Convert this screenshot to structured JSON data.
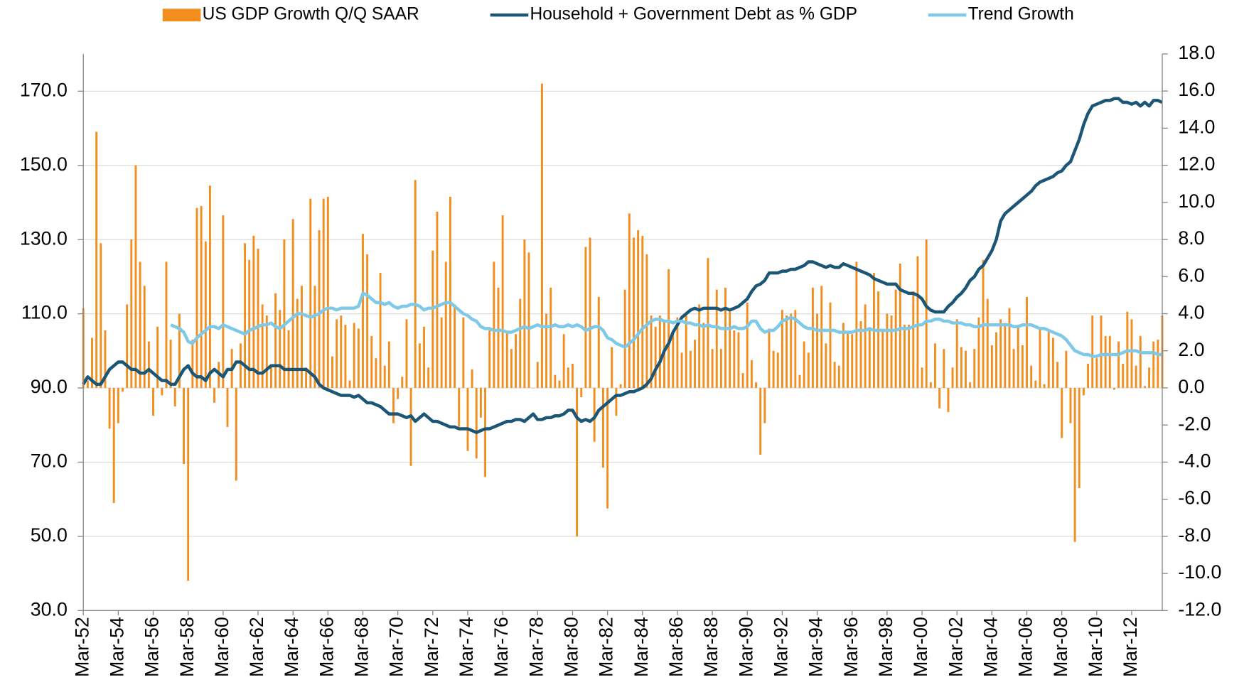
{
  "chart_data": {
    "type": "bar",
    "categories": [
      "Mar-52",
      null,
      null,
      null,
      null,
      null,
      null,
      null,
      "Mar-54",
      null,
      null,
      null,
      null,
      null,
      null,
      null,
      "Mar-56",
      null,
      null,
      null,
      null,
      null,
      null,
      null,
      "Mar-58",
      null,
      null,
      null,
      null,
      null,
      null,
      null,
      "Mar-60",
      null,
      null,
      null,
      null,
      null,
      null,
      null,
      "Mar-62",
      null,
      null,
      null,
      null,
      null,
      null,
      null,
      "Mar-64",
      null,
      null,
      null,
      null,
      null,
      null,
      null,
      "Mar-66",
      null,
      null,
      null,
      null,
      null,
      null,
      null,
      "Mar-68",
      null,
      null,
      null,
      null,
      null,
      null,
      null,
      "Mar-70",
      null,
      null,
      null,
      null,
      null,
      null,
      null,
      "Mar-72",
      null,
      null,
      null,
      null,
      null,
      null,
      null,
      "Mar-74",
      null,
      null,
      null,
      null,
      null,
      null,
      null,
      "Mar-76",
      null,
      null,
      null,
      null,
      null,
      null,
      null,
      "Mar-78",
      null,
      null,
      null,
      null,
      null,
      null,
      null,
      "Mar-80",
      null,
      null,
      null,
      null,
      null,
      null,
      null,
      "Mar-82",
      null,
      null,
      null,
      null,
      null,
      null,
      null,
      "Mar-84",
      null,
      null,
      null,
      null,
      null,
      null,
      null,
      "Mar-86",
      null,
      null,
      null,
      null,
      null,
      null,
      null,
      "Mar-88",
      null,
      null,
      null,
      null,
      null,
      null,
      null,
      "Mar-90",
      null,
      null,
      null,
      null,
      null,
      null,
      null,
      "Mar-92",
      null,
      null,
      null,
      null,
      null,
      null,
      null,
      "Mar-94",
      null,
      null,
      null,
      null,
      null,
      null,
      null,
      "Mar-96",
      null,
      null,
      null,
      null,
      null,
      null,
      null,
      "Mar-98",
      null,
      null,
      null,
      null,
      null,
      null,
      null,
      "Mar-00",
      null,
      null,
      null,
      null,
      null,
      null,
      null,
      "Mar-02",
      null,
      null,
      null,
      null,
      null,
      null,
      null,
      "Mar-04",
      null,
      null,
      null,
      null,
      null,
      null,
      null,
      "Mar-06",
      null,
      null,
      null,
      null,
      null,
      null,
      null,
      "Mar-08",
      null,
      null,
      null,
      null,
      null,
      null,
      null,
      "Mar-10",
      null,
      null,
      null,
      null,
      null,
      null,
      null,
      "Mar-12",
      null,
      null,
      null,
      null,
      null,
      null,
      null
    ],
    "series": [
      {
        "name": "US GDP Growth Q/Q SAAR",
        "type": "bar",
        "axis": "y2",
        "color": "#f28e1e",
        "values": [
          4.3,
          0.4,
          2.7,
          13.8,
          7.8,
          3.1,
          -2.2,
          -6.2,
          -1.9,
          -0.2,
          4.5,
          8.0,
          12.0,
          6.8,
          5.5,
          2.5,
          -1.5,
          3.3,
          -0.4,
          6.8,
          2.6,
          -1.0,
          4.0,
          -4.1,
          -10.4,
          2.6,
          9.7,
          9.8,
          7.9,
          10.9,
          -0.8,
          1.4,
          9.3,
          -2.1,
          2.1,
          -5.0,
          2.4,
          7.8,
          6.9,
          8.2,
          7.5,
          4.5,
          3.9,
          1.2,
          5.1,
          4.2,
          8.0,
          3.1,
          9.1,
          4.8,
          5.5,
          1.1,
          10.2,
          5.5,
          8.5,
          10.2,
          10.3,
          1.7,
          3.7,
          3.9,
          3.4,
          0.4,
          3.5,
          3.2,
          8.3,
          7.2,
          2.8,
          1.6,
          6.2,
          1.2,
          2.5,
          -1.9,
          -0.6,
          0.6,
          3.7,
          -4.2,
          11.2,
          2.4,
          3.3,
          1.1,
          7.4,
          9.5,
          3.8,
          6.8,
          10.3,
          4.5,
          -2.1,
          3.8,
          -3.4,
          1.0,
          -3.8,
          -1.6,
          -4.8,
          3.1,
          6.8,
          5.4,
          9.3,
          3.0,
          2.1,
          2.9,
          4.8,
          8.0,
          7.3,
          0.0,
          1.4,
          16.4,
          4.0,
          5.4,
          0.7,
          0.4,
          2.9,
          1.1,
          1.3,
          -8.0,
          -0.5,
          7.6,
          8.1,
          -2.9,
          4.9,
          -4.3,
          -6.5,
          2.2,
          -1.5,
          0.2,
          5.3,
          9.4,
          8.1,
          8.5,
          8.2,
          7.2,
          3.9,
          3.3,
          3.9,
          3.6,
          6.4,
          3.1,
          3.8,
          1.9,
          3.9,
          2.0,
          2.6,
          4.5,
          3.5,
          7.0,
          2.1,
          5.3,
          2.1,
          5.4,
          4.1,
          3.1,
          3.0,
          0.8,
          4.6,
          1.5,
          0.3,
          -3.6,
          -1.9,
          3.2,
          2.0,
          1.9,
          4.2,
          3.9,
          4.0,
          4.2,
          0.7,
          2.5,
          1.9,
          5.4,
          4.0,
          5.5,
          2.4,
          4.6,
          1.4,
          1.2,
          3.5,
          3.0,
          2.9,
          6.8,
          3.6,
          4.5,
          3.1,
          6.2,
          5.2,
          3.1,
          4.0,
          3.9,
          5.3,
          6.7,
          3.4,
          3.4,
          5.2,
          7.1,
          1.1,
          8.0,
          0.3,
          2.4,
          -1.1,
          2.1,
          -1.3,
          1.1,
          3.7,
          2.2,
          2.0,
          0.3,
          2.1,
          3.8,
          6.9,
          4.8,
          2.3,
          3.0,
          3.7,
          3.5,
          4.3,
          2.1,
          3.4,
          2.3,
          4.9,
          1.2,
          0.4,
          3.2,
          0.2,
          3.1,
          2.7,
          1.4,
          -2.7,
          2.0,
          -1.9,
          -8.3,
          -5.4,
          -0.4,
          1.3,
          3.9,
          1.6,
          3.9,
          2.8,
          2.8,
          -0.1,
          2.5,
          1.3,
          4.1,
          3.7,
          1.2,
          2.8,
          0.1,
          1.1,
          2.5,
          2.6,
          3.9
        ]
      },
      {
        "name": "Household + Government Debt as % GDP",
        "type": "line",
        "axis": "y",
        "color": "#1b5676",
        "values": [
          91,
          93,
          92,
          91,
          91,
          93,
          95,
          96,
          97,
          97,
          96,
          95,
          95,
          94,
          94,
          95,
          94,
          93,
          92,
          92,
          91,
          91,
          93,
          95,
          96,
          94,
          93,
          93,
          92,
          94,
          95,
          94,
          93,
          95,
          95,
          97,
          97,
          96,
          95,
          95,
          94,
          94,
          95,
          96,
          96,
          96,
          95,
          95,
          95,
          95,
          95,
          95,
          94,
          93,
          91,
          90,
          89.5,
          89,
          88.5,
          88,
          88,
          88,
          87.5,
          88,
          87,
          86,
          86,
          85.5,
          85,
          84,
          83,
          83,
          83,
          82.5,
          82,
          82.5,
          81,
          82,
          83,
          82,
          81,
          81,
          80.5,
          80,
          79.5,
          79.5,
          79,
          79,
          79,
          78.5,
          78,
          78.5,
          79,
          79,
          79.5,
          80,
          80.5,
          81,
          81,
          81.5,
          81.5,
          81,
          82,
          83,
          81.5,
          81.5,
          82,
          82,
          82.5,
          82.5,
          83,
          84,
          84,
          82,
          81,
          81.5,
          81,
          82,
          84,
          85,
          86,
          87,
          88,
          88,
          88.5,
          89,
          89,
          89.5,
          90,
          91,
          92.5,
          95,
          97,
          100,
          102,
          105,
          107,
          109,
          110,
          111,
          111.5,
          111,
          111.5,
          111.5,
          111.5,
          111.5,
          111,
          111.5,
          111,
          111.5,
          112,
          113,
          114,
          116,
          117.5,
          118,
          119,
          121,
          121,
          121,
          121.5,
          121.5,
          122,
          122,
          122.5,
          123,
          124,
          124,
          123.5,
          123,
          122.5,
          123,
          122.5,
          122.5,
          123.5,
          123,
          122.5,
          122,
          121.5,
          121,
          120.5,
          119.5,
          119,
          118.5,
          118,
          118,
          118,
          116.5,
          116,
          115.5,
          115.5,
          115,
          114,
          112,
          111,
          110.5,
          110.5,
          110.5,
          112,
          113,
          114.5,
          115.5,
          117,
          119,
          120,
          122,
          123,
          125,
          127,
          130,
          135,
          137,
          138,
          139,
          140,
          141,
          142,
          143,
          144.5,
          145.5,
          146,
          146.5,
          147,
          148,
          148.5,
          150,
          151,
          154,
          157,
          161,
          164,
          166,
          166.5,
          167,
          167.5,
          167.5,
          168,
          168,
          167,
          167,
          166.5,
          167,
          166,
          167,
          166,
          167.5,
          167.5,
          167
        ]
      },
      {
        "name": "Trend Growth",
        "type": "line",
        "axis": "y2",
        "color": "#7ec8e8",
        "values": [
          null,
          null,
          null,
          null,
          null,
          null,
          null,
          null,
          null,
          null,
          null,
          null,
          null,
          null,
          null,
          null,
          null,
          null,
          null,
          null,
          3.4,
          3.3,
          3.2,
          3.0,
          2.5,
          2.4,
          2.7,
          2.9,
          3.1,
          3.3,
          3.3,
          3.2,
          3.4,
          3.3,
          3.2,
          3.1,
          3.0,
          2.9,
          3.1,
          3.2,
          3.3,
          3.4,
          3.4,
          3.5,
          3.3,
          3.2,
          3.4,
          3.6,
          3.8,
          4.0,
          4.0,
          3.9,
          3.8,
          3.9,
          4.0,
          4.2,
          4.3,
          4.3,
          4.2,
          4.3,
          4.3,
          4.3,
          4.3,
          4.4,
          5.1,
          5.0,
          4.8,
          4.6,
          4.6,
          4.5,
          4.6,
          4.4,
          4.3,
          4.4,
          4.4,
          4.5,
          4.5,
          4.4,
          4.2,
          4.3,
          4.3,
          4.4,
          4.5,
          4.6,
          4.6,
          4.4,
          4.2,
          4.0,
          3.9,
          3.7,
          3.6,
          3.3,
          3.2,
          3.2,
          3.1,
          3.1,
          3.1,
          3.0,
          3.0,
          3.1,
          3.2,
          3.3,
          3.2,
          3.3,
          3.4,
          3.3,
          3.3,
          3.3,
          3.4,
          3.3,
          3.3,
          3.4,
          3.3,
          3.4,
          3.3,
          3.1,
          3.2,
          3.3,
          3.3,
          3.1,
          2.7,
          2.6,
          2.4,
          2.3,
          2.2,
          2.4,
          2.6,
          2.9,
          3.2,
          3.4,
          3.6,
          3.7,
          3.7,
          3.6,
          3.6,
          3.5,
          3.6,
          3.6,
          3.5,
          3.5,
          3.4,
          3.4,
          3.3,
          3.4,
          3.3,
          3.3,
          3.2,
          3.2,
          3.2,
          3.3,
          3.2,
          3.2,
          3.3,
          3.6,
          3.6,
          3.2,
          3.0,
          3.1,
          3.1,
          3.3,
          3.6,
          3.7,
          3.8,
          3.7,
          3.5,
          3.3,
          3.2,
          3.2,
          3.1,
          3.1,
          3.1,
          3.1,
          3.1,
          3.0,
          3.0,
          3.0,
          3.0,
          3.1,
          3.1,
          3.1,
          3.2,
          3.1,
          3.1,
          3.1,
          3.1,
          3.1,
          3.1,
          3.2,
          3.2,
          3.2,
          3.3,
          3.4,
          3.4,
          3.6,
          3.6,
          3.7,
          3.7,
          3.6,
          3.6,
          3.5,
          3.5,
          3.5,
          3.4,
          3.4,
          3.3,
          3.3,
          3.4,
          3.4,
          3.4,
          3.4,
          3.4,
          3.4,
          3.4,
          3.3,
          3.3,
          3.4,
          3.4,
          3.4,
          3.3,
          3.2,
          3.2,
          3.1,
          3.0,
          2.9,
          2.8,
          2.6,
          2.3,
          2.0,
          1.9,
          1.8,
          1.8,
          1.7,
          1.7,
          1.8,
          1.8,
          1.8,
          1.8,
          1.8,
          1.9,
          2.0,
          2.0,
          2.0,
          1.9,
          1.9,
          1.9,
          1.9,
          1.8,
          1.8
        ]
      }
    ],
    "ylim": [
      30,
      170
    ],
    "yticks": [
      {
        "value": 30,
        "label": "30.0"
      },
      {
        "value": 50,
        "label": "50.0"
      },
      {
        "value": 70,
        "label": "70.0"
      },
      {
        "value": 90,
        "label": "90.0"
      },
      {
        "value": 110,
        "label": "110.0"
      },
      {
        "value": 130,
        "label": "130.0"
      },
      {
        "value": 150,
        "label": "150.0"
      },
      {
        "value": 170,
        "label": "170.0"
      }
    ],
    "y2lim": [
      -12,
      18
    ],
    "y2ticks": [
      {
        "value": -12,
        "label": "-12.0"
      },
      {
        "value": -10,
        "label": "-10.0"
      },
      {
        "value": -8,
        "label": "-8.0"
      },
      {
        "value": -6,
        "label": "-6.0"
      },
      {
        "value": -4,
        "label": "-4.0"
      },
      {
        "value": -2,
        "label": "-2.0"
      },
      {
        "value": 0,
        "label": "0.0"
      },
      {
        "value": 2,
        "label": "2.0"
      },
      {
        "value": 4,
        "label": "4.0"
      },
      {
        "value": 6,
        "label": "6.0"
      },
      {
        "value": 8,
        "label": "8.0"
      },
      {
        "value": 10,
        "label": "10.0"
      },
      {
        "value": 12,
        "label": "12.0"
      },
      {
        "value": 14,
        "label": "14.0"
      },
      {
        "value": 16,
        "label": "16.0"
      },
      {
        "value": 18,
        "label": "18.0"
      }
    ],
    "grid": true,
    "legend": "top"
  }
}
